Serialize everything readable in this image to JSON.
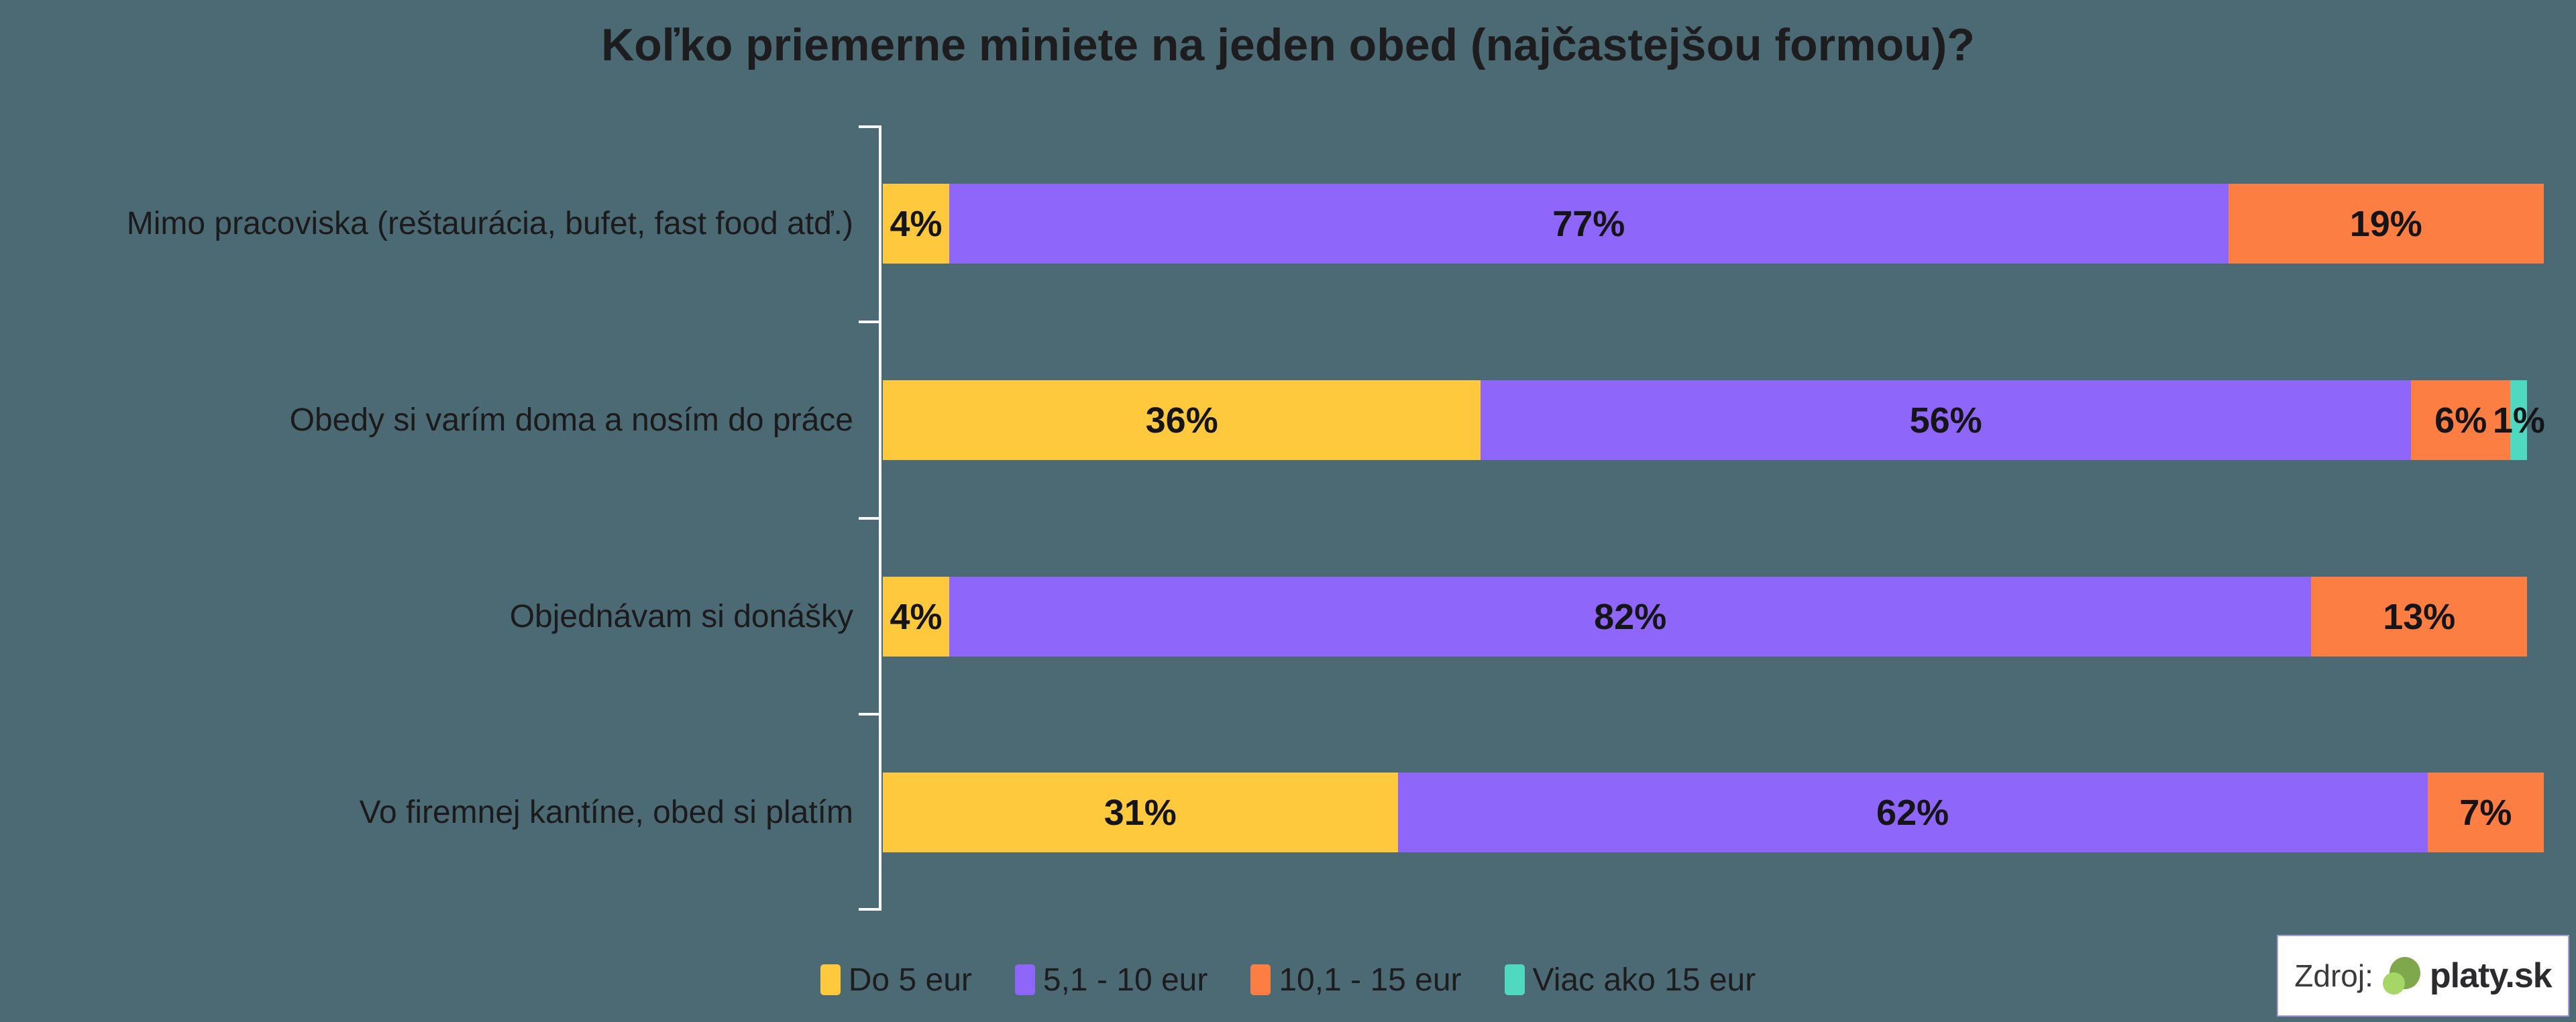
{
  "title": "Koľko priemerne miniete na jeden obed (najčastejšou formou)?",
  "colors": {
    "background": "#4C6A73",
    "axis": "#F8F7FC",
    "text": "#1D1D20",
    "yellow": "#FFC93E",
    "purple": "#8F66FA",
    "orange": "#FC7E42",
    "teal": "#4FD9C1"
  },
  "chart_data": {
    "type": "bar",
    "orientation": "horizontal",
    "stacked": true,
    "title": "Koľko priemerne miniete na jeden obed (najčastejšou formou)?",
    "categories": [
      "Mimo pracoviska (reštaurácia, bufet, fast food atď.)",
      "Obedy si varím doma a nosím do práce",
      "Objednávam si donášky",
      "Vo firemnej kantíne, obed si platím"
    ],
    "series": [
      {
        "name": "Do 5 eur",
        "color": "#FFC93E",
        "values": [
          4,
          36,
          4,
          31
        ]
      },
      {
        "name": "5,1 - 10 eur",
        "color": "#8F66FA",
        "values": [
          77,
          56,
          82,
          62
        ]
      },
      {
        "name": "10,1 - 15 eur",
        "color": "#FC7E42",
        "values": [
          19,
          6,
          13,
          7
        ]
      },
      {
        "name": "Viac ako 15 eur",
        "color": "#4FD9C1",
        "values": [
          0,
          1,
          0,
          0
        ]
      }
    ],
    "value_suffix": "%",
    "xlim": [
      0,
      100
    ],
    "grid": false,
    "legend_position": "bottom"
  },
  "rows": [
    {
      "label": "Mimo pracoviska (reštaurácia, bufet, fast food atď.)",
      "segments": [
        {
          "value": 4,
          "text": "4%",
          "color": "#FFC93E"
        },
        {
          "value": 77,
          "text": "77%",
          "color": "#8F66FA"
        },
        {
          "value": 19,
          "text": "19%",
          "color": "#FC7E42"
        }
      ]
    },
    {
      "label": "Obedy si varím doma a nosím do práce",
      "segments": [
        {
          "value": 36,
          "text": "36%",
          "color": "#FFC93E"
        },
        {
          "value": 56,
          "text": "56%",
          "color": "#8F66FA"
        },
        {
          "value": 6,
          "text": "6%",
          "color": "#FC7E42"
        },
        {
          "value": 1,
          "text": "1%",
          "color": "#4FD9C1"
        }
      ]
    },
    {
      "label": "Objednávam si donášky",
      "segments": [
        {
          "value": 4,
          "text": "4%",
          "color": "#FFC93E"
        },
        {
          "value": 82,
          "text": "82%",
          "color": "#8F66FA"
        },
        {
          "value": 13,
          "text": "13%",
          "color": "#FC7E42"
        }
      ]
    },
    {
      "label": "Vo firemnej kantíne, obed si platím",
      "segments": [
        {
          "value": 31,
          "text": "31%",
          "color": "#FFC93E"
        },
        {
          "value": 62,
          "text": "62%",
          "color": "#8F66FA"
        },
        {
          "value": 7,
          "text": "7%",
          "color": "#FC7E42"
        }
      ]
    }
  ],
  "legend": [
    {
      "label": "Do 5 eur",
      "color": "#FFC93E"
    },
    {
      "label": "5,1 - 10 eur",
      "color": "#8F66FA"
    },
    {
      "label": "10,1 - 15 eur",
      "color": "#FC7E42"
    },
    {
      "label": "Viac ako 15 eur",
      "color": "#4FD9C1"
    }
  ],
  "source": {
    "prefix": "Zdroj:",
    "brand": "platy.sk",
    "logo_color_dark": "#7FA74B",
    "logo_color_light": "#A6D766"
  }
}
